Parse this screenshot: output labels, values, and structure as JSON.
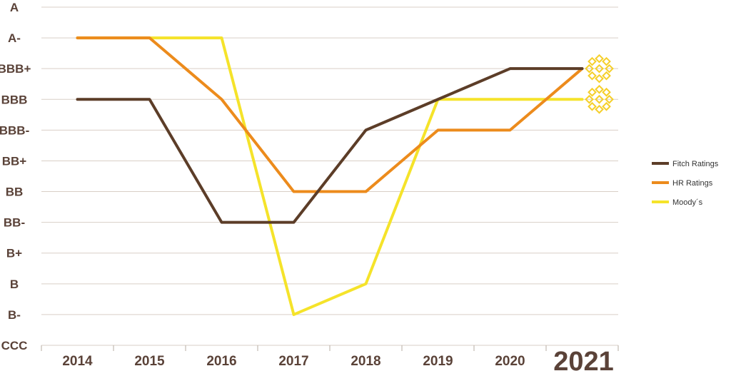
{
  "chart_data": {
    "type": "line",
    "categories": [
      "2014",
      "2015",
      "2016",
      "2017",
      "2018",
      "2019",
      "2020",
      "2021"
    ],
    "highlight_category": "2021",
    "y_levels": [
      "CCC",
      "B-",
      "B",
      "B+",
      "BB-",
      "BB",
      "BB+",
      "BBB-",
      "BBB",
      "BBB+",
      "A-",
      "A"
    ],
    "series": [
      {
        "name": "Fitch Ratings",
        "color": "#5c3d28",
        "values": [
          "BBB",
          "BBB",
          "BB-",
          "BB-",
          "BBB-",
          "BBB",
          "BBB+",
          "BBB+"
        ]
      },
      {
        "name": "HR Ratings",
        "color": "#ec8b1c",
        "values": [
          "A-",
          "A-",
          "BBB",
          "BB",
          "BB",
          "BBB-",
          "BBB-",
          "BBB+"
        ]
      },
      {
        "name": "Moody´s",
        "color": "#f5e32a",
        "values": [
          "A-",
          "A-",
          "A-",
          "B-",
          "B",
          "BBB",
          "BBB",
          "BBB"
        ]
      }
    ],
    "title": "",
    "xlabel": "",
    "ylabel": "",
    "grid": true,
    "legend_position": "right",
    "marker_icon": "sparkle-icon",
    "marker_color": "#f5cf2a"
  }
}
